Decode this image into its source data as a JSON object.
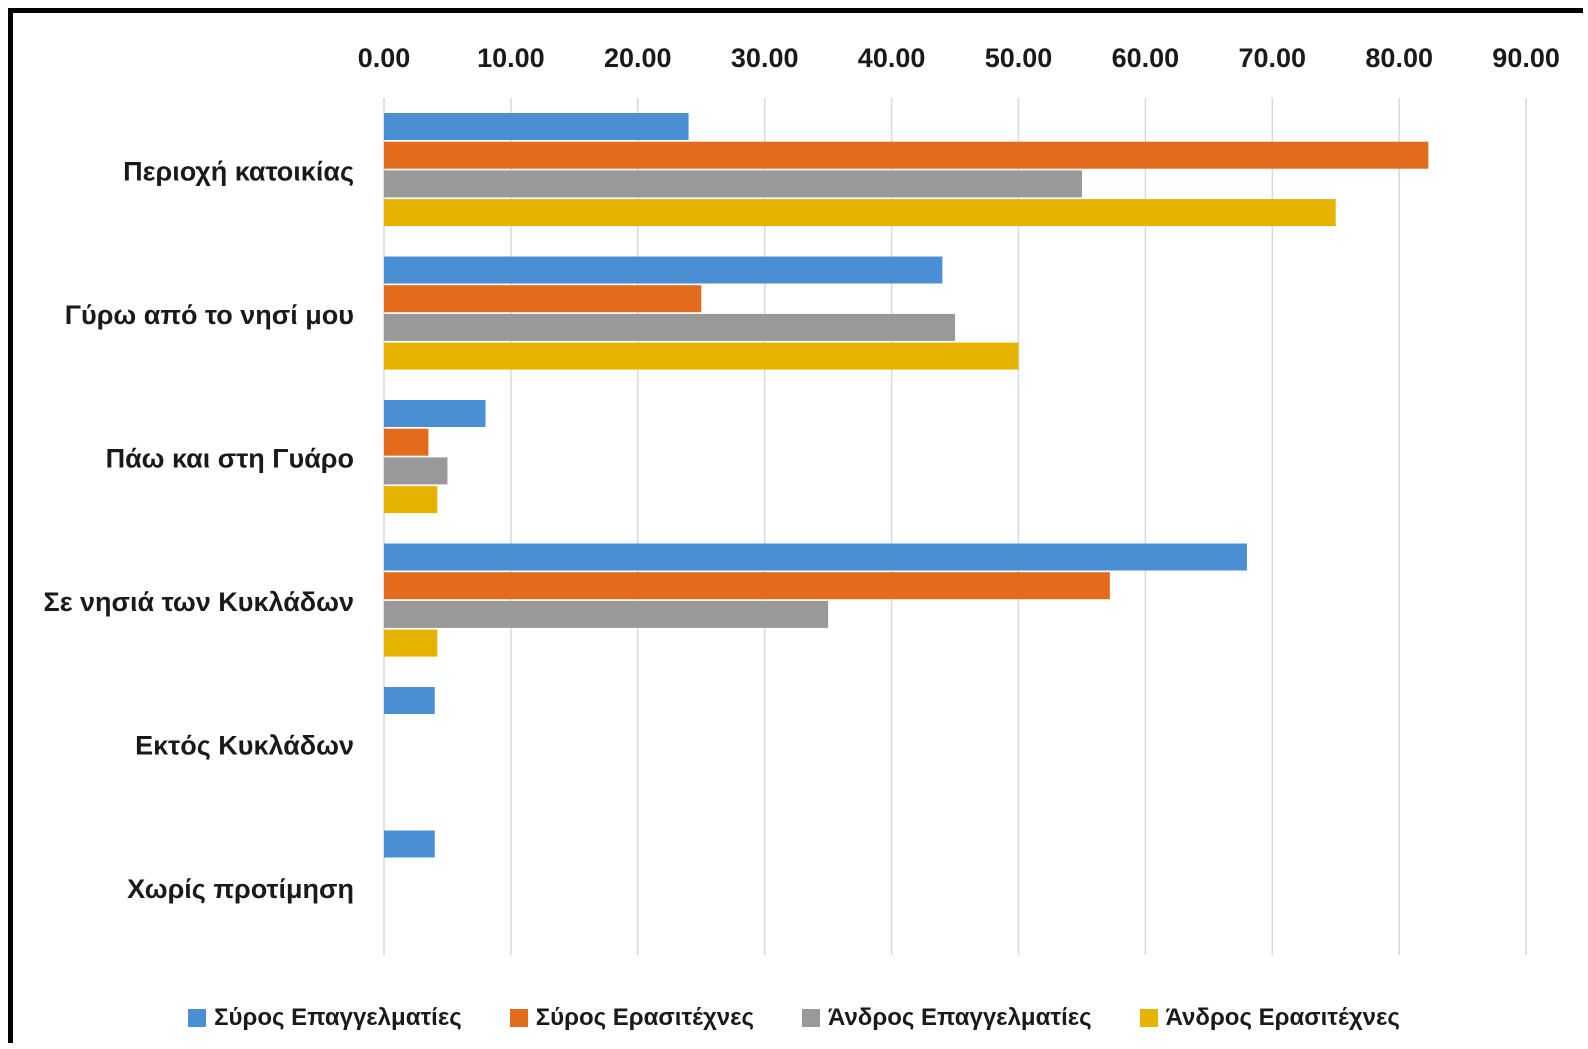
{
  "chart_data": {
    "type": "bar",
    "orientation": "horizontal",
    "title": "",
    "xlabel": "",
    "ylabel": "",
    "xlim": [
      0,
      90
    ],
    "x_ticks": [
      "0.00",
      "10.00",
      "20.00",
      "30.00",
      "40.00",
      "50.00",
      "60.00",
      "70.00",
      "80.00",
      "90.00"
    ],
    "x_axis_position": "top",
    "grid": true,
    "legend_position": "bottom",
    "categories": [
      "Περιοχή κατοικίας",
      "Γύρω από το  νησί μου",
      "Πάω και στη Γυάρο",
      "Σε νησιά των Κυκλάδων",
      "Εκτός Κυκλάδων",
      "Χωρίς προτίμηση"
    ],
    "series": [
      {
        "name": "Σύρος Επαγγελματίες",
        "color": "#4a8fd4",
        "values": [
          24,
          44,
          8,
          68,
          4,
          4
        ]
      },
      {
        "name": "Σύρος Ερασιτέχνες",
        "color": "#e36c1c",
        "values": [
          82.3,
          25,
          3.5,
          57.2,
          0,
          0
        ]
      },
      {
        "name": "Άνδρος Επαγγελματίες",
        "color": "#999999",
        "values": [
          55,
          45,
          5,
          35,
          0,
          0
        ]
      },
      {
        "name": "Άνδρος Ερασιτέχνες",
        "color": "#e6b400",
        "values": [
          75,
          50,
          4.2,
          4.2,
          0,
          0
        ]
      }
    ]
  }
}
